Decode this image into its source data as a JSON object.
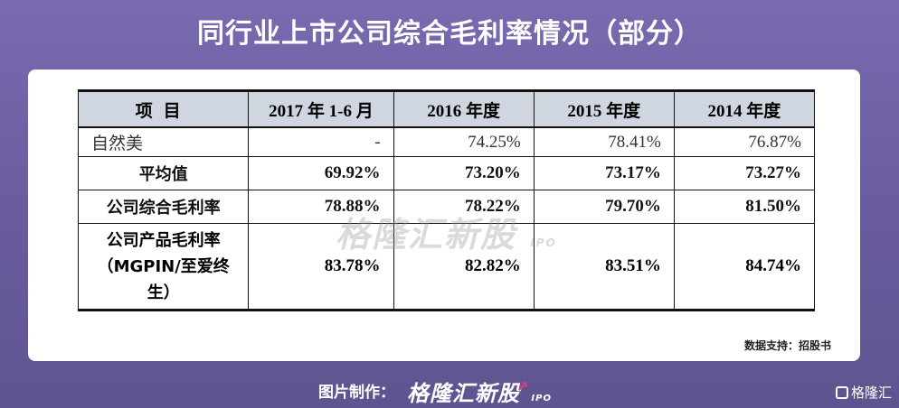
{
  "title": "同行业上市公司综合毛利率情况（部分）",
  "table": {
    "headers": [
      "项目",
      "2017 年 1-6 月",
      "2016 年度",
      "2015 年度",
      "2014 年度"
    ],
    "rows": [
      {
        "label": "自然美",
        "values": [
          "-",
          "74.25%",
          "78.41%",
          "76.87%"
        ]
      },
      {
        "label": "平均值",
        "values": [
          "69.92%",
          "73.20%",
          "73.17%",
          "73.27%"
        ]
      },
      {
        "label": "公司综合毛利率",
        "values": [
          "78.88%",
          "78.22%",
          "79.70%",
          "81.50%"
        ]
      },
      {
        "label_lines": [
          "公司产品毛利率",
          "（MGPIN/至爱终",
          "生）"
        ],
        "values": [
          "83.78%",
          "82.82%",
          "83.51%",
          "84.74%"
        ]
      }
    ]
  },
  "source": "数据支持：招股书",
  "watermark": {
    "text": "格隆汇新股",
    "sub": "IPO"
  },
  "footer": {
    "credit_label": "图片制作：",
    "brand": "格隆汇新股",
    "brand_sub": "IPO",
    "corner_logo": "格隆汇"
  }
}
